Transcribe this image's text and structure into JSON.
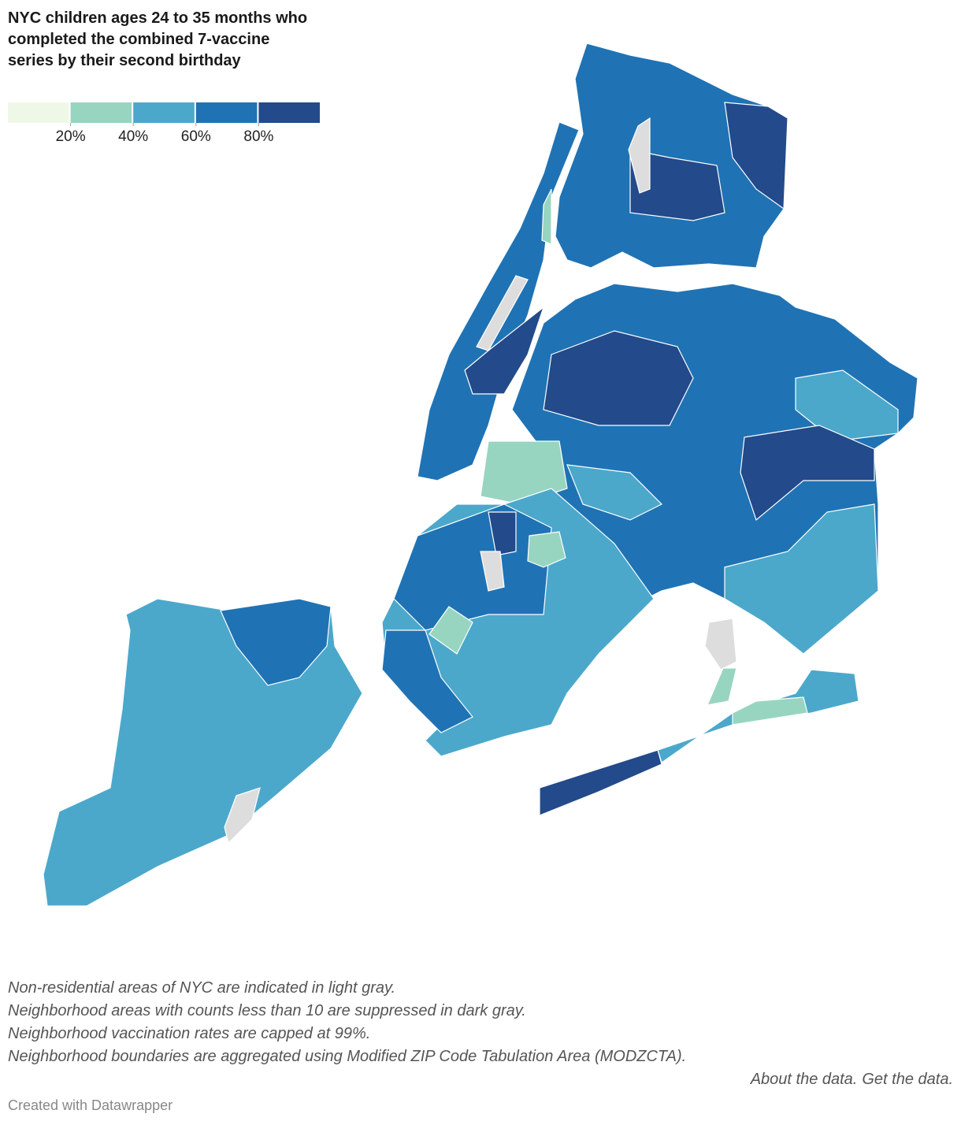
{
  "title": "NYC children ages 24 to 35 months who completed the combined 7-vaccine series by their second birthday",
  "legend": {
    "colors": [
      "#eff8e6",
      "#98d5c0",
      "#4ba8cb",
      "#1f73b4",
      "#234a8a"
    ],
    "range": [
      0,
      100
    ],
    "ticks": [
      {
        "value": 20,
        "label": "20%"
      },
      {
        "value": 40,
        "label": "40%"
      },
      {
        "value": 60,
        "label": "60%"
      },
      {
        "value": 80,
        "label": "80%"
      }
    ]
  },
  "notes": [
    "Non-residential areas of NYC are indicated in light gray.",
    "Neighborhood areas with counts less than 10 are suppressed in dark gray.",
    "Neighborhood vaccination rates are capped at 99%.",
    "Neighborhood boundaries are aggregated using Modified ZIP Code Tabulation Area (MODZCTA)."
  ],
  "links": [
    "About the data.",
    "Get the data."
  ],
  "credit": "Created with Datawrapper"
}
